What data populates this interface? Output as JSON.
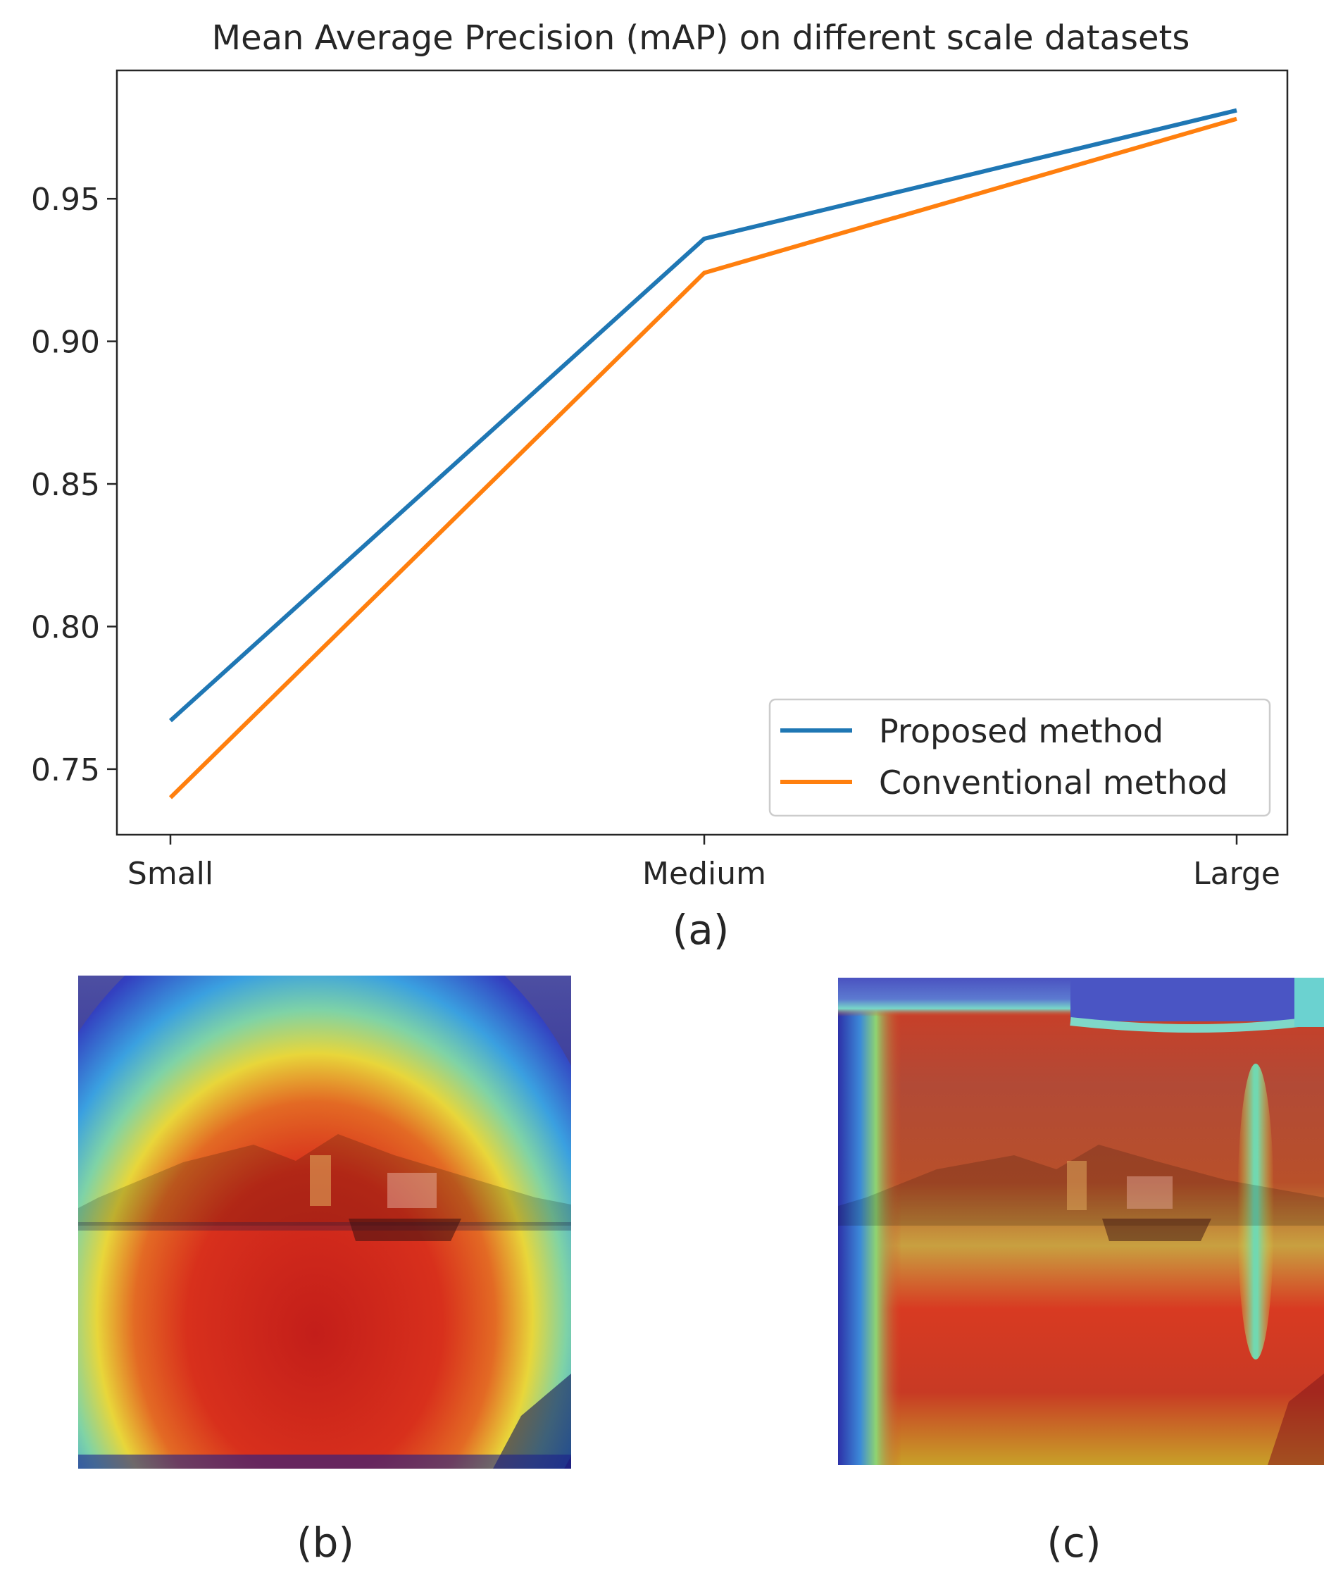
{
  "chart_data": {
    "type": "line",
    "title": "Mean Average Precision (mAP) on different scale datasets",
    "xlabel": "",
    "ylabel": "",
    "categories": [
      "Small",
      "Medium",
      "Large"
    ],
    "series": [
      {
        "name": "Proposed method",
        "values": [
          0.767,
          0.936,
          0.981
        ],
        "color": "#1f77b4"
      },
      {
        "name": "Conventional method",
        "values": [
          0.74,
          0.924,
          0.978
        ],
        "color": "#ff7f0e"
      }
    ],
    "ylim": [
      0.727,
      0.995
    ],
    "yticks": [
      0.75,
      0.8,
      0.85,
      0.9,
      0.95
    ],
    "ytick_labels": [
      "0.75",
      "0.80",
      "0.85",
      "0.90",
      "0.95"
    ],
    "grid": false,
    "legend_position": "lower-right"
  },
  "captions": {
    "a": "(a)",
    "b": "(b)",
    "c": "(c)"
  },
  "heatmap_colors": {
    "low": "#2a2fb0",
    "mid": "#35c0e0",
    "midhigh": "#e8e23a",
    "high": "#d8201c"
  }
}
